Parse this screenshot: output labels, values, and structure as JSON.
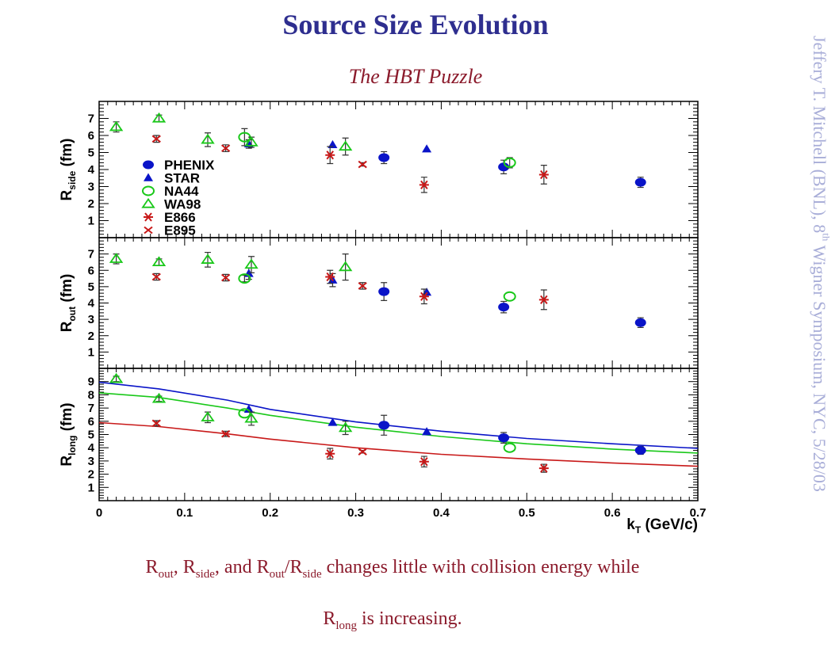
{
  "slide": {
    "title": "Source Size Evolution",
    "subtitle": "The HBT Puzzle",
    "side_credit_pre": "Jeffery T. Mitchell (BNL), 8",
    "side_credit_sup": "th",
    "side_credit_post": " Wigner Symposium, NYC, 5/28/03",
    "caption": {
      "line1": {
        "r1": "R",
        "r1_sub": "out",
        "t1": ", ",
        "r2": "R",
        "r2_sub": "side",
        "t2": ", and ",
        "r3": "R",
        "r3_sub": "out",
        "t3": "/",
        "r4": "R",
        "r4_sub": "side",
        "t4": " changes little with collision energy while"
      },
      "line2": {
        "r": "R",
        "r_sub": "long",
        "t": " is increasing."
      }
    }
  },
  "colors": {
    "title": "#2e2e8f",
    "caption": "#8b1a2b",
    "phenix": "#0a14c8",
    "star": "#0a14c8",
    "na44": "#19c819",
    "wa98": "#19c819",
    "e866": "#c81919",
    "e895": "#c81919",
    "credit": "#a9aed8"
  },
  "chart_data": {
    "type": "scatter",
    "xlabel_main": "k",
    "xlabel_sub": "T",
    "xlabel_unit": " (GeV/c)",
    "xlim": [
      0,
      0.7
    ],
    "x_ticks": [
      "0",
      "0.1",
      "0.2",
      "0.3",
      "0.4",
      "0.5",
      "0.6",
      "0.7"
    ],
    "legend": [
      {
        "name": "PHENIX",
        "marker": "circle-filled",
        "color": "#0a14c8"
      },
      {
        "name": "STAR",
        "marker": "triangle-filled",
        "color": "#0a14c8"
      },
      {
        "name": "NA44",
        "marker": "circle-open",
        "color": "#19c819"
      },
      {
        "name": "WA98",
        "marker": "triangle-open",
        "color": "#19c819"
      },
      {
        "name": "E866",
        "marker": "star",
        "color": "#c81919"
      },
      {
        "name": "E895",
        "marker": "cross",
        "color": "#c81919"
      }
    ],
    "legend_placement": "left, inside top panel",
    "panels": [
      {
        "ylabel_main": "R",
        "ylabel_sub": "side",
        "ylabel_unit": " (fm)",
        "ylim": [
          0,
          8
        ],
        "y_ticks": [
          "1",
          "2",
          "3",
          "4",
          "5",
          "6",
          "7"
        ],
        "series": {
          "PHENIX": [
            {
              "x": 0.333,
              "y": 4.7,
              "e": 0.35
            },
            {
              "x": 0.473,
              "y": 4.15,
              "e": 0.4
            },
            {
              "x": 0.633,
              "y": 3.25,
              "e": 0.3
            }
          ],
          "STAR": [
            {
              "x": 0.175,
              "y": 5.5,
              "e": 0.25
            },
            {
              "x": 0.273,
              "y": 5.45,
              "e": 0
            },
            {
              "x": 0.383,
              "y": 5.2,
              "e": 0
            }
          ],
          "NA44": [
            {
              "x": 0.17,
              "y": 5.9,
              "e": 0.5
            },
            {
              "x": 0.48,
              "y": 4.4,
              "e": 0.3
            }
          ],
          "WA98": [
            {
              "x": 0.02,
              "y": 6.5,
              "e": 0.3
            },
            {
              "x": 0.07,
              "y": 7.0,
              "e": 0.2
            },
            {
              "x": 0.127,
              "y": 5.75,
              "e": 0.4
            },
            {
              "x": 0.178,
              "y": 5.6,
              "e": 0.3
            },
            {
              "x": 0.288,
              "y": 5.35,
              "e": 0.5
            }
          ],
          "E866": [
            {
              "x": 0.27,
              "y": 4.85,
              "e": 0.5
            },
            {
              "x": 0.38,
              "y": 3.1,
              "e": 0.45
            },
            {
              "x": 0.52,
              "y": 3.7,
              "e": 0.55
            }
          ],
          "E895": [
            {
              "x": 0.067,
              "y": 5.8,
              "e": 0.2
            },
            {
              "x": 0.148,
              "y": 5.25,
              "e": 0.2
            },
            {
              "x": 0.308,
              "y": 4.3,
              "e": 0.1
            }
          ]
        },
        "curves": []
      },
      {
        "ylabel_main": "R",
        "ylabel_sub": "out",
        "ylabel_unit": " (fm)",
        "ylim": [
          0,
          8
        ],
        "y_ticks": [
          "1",
          "2",
          "3",
          "4",
          "5",
          "6",
          "7"
        ],
        "series": {
          "PHENIX": [
            {
              "x": 0.333,
              "y": 4.7,
              "e": 0.55
            },
            {
              "x": 0.473,
              "y": 3.75,
              "e": 0.35
            },
            {
              "x": 0.633,
              "y": 2.8,
              "e": 0.3
            }
          ],
          "STAR": [
            {
              "x": 0.175,
              "y": 5.8,
              "e": 0.35
            },
            {
              "x": 0.273,
              "y": 5.4,
              "e": 0.4
            },
            {
              "x": 0.383,
              "y": 4.65,
              "e": 0
            }
          ],
          "NA44": [
            {
              "x": 0.17,
              "y": 5.5,
              "e": 0.2
            },
            {
              "x": 0.48,
              "y": 4.4,
              "e": 0
            }
          ],
          "WA98": [
            {
              "x": 0.02,
              "y": 6.7,
              "e": 0.3
            },
            {
              "x": 0.07,
              "y": 6.5,
              "e": 0.2
            },
            {
              "x": 0.127,
              "y": 6.65,
              "e": 0.45
            },
            {
              "x": 0.178,
              "y": 6.35,
              "e": 0.5
            },
            {
              "x": 0.288,
              "y": 6.2,
              "e": 0.8
            }
          ],
          "E866": [
            {
              "x": 0.27,
              "y": 5.6,
              "e": 0.4
            },
            {
              "x": 0.38,
              "y": 4.4,
              "e": 0.45
            },
            {
              "x": 0.52,
              "y": 4.2,
              "e": 0.6
            }
          ],
          "E895": [
            {
              "x": 0.067,
              "y": 5.6,
              "e": 0.2
            },
            {
              "x": 0.148,
              "y": 5.55,
              "e": 0.2
            },
            {
              "x": 0.308,
              "y": 5.05,
              "e": 0.2
            }
          ]
        },
        "curves": []
      },
      {
        "ylabel_main": "R",
        "ylabel_sub": "long",
        "ylabel_unit": " (fm)",
        "ylim": [
          0,
          10
        ],
        "y_ticks": [
          "1",
          "2",
          "3",
          "4",
          "5",
          "6",
          "7",
          "8",
          "9"
        ],
        "series": {
          "PHENIX": [
            {
              "x": 0.333,
              "y": 5.7,
              "e": 0.75
            },
            {
              "x": 0.473,
              "y": 4.75,
              "e": 0.4
            },
            {
              "x": 0.633,
              "y": 3.8,
              "e": 0.3
            }
          ],
          "STAR": [
            {
              "x": 0.175,
              "y": 6.9,
              "e": 0
            },
            {
              "x": 0.273,
              "y": 5.9,
              "e": 0
            },
            {
              "x": 0.383,
              "y": 5.2,
              "e": 0
            }
          ],
          "NA44": [
            {
              "x": 0.17,
              "y": 6.6,
              "e": 0
            },
            {
              "x": 0.48,
              "y": 4.0,
              "e": 0
            }
          ],
          "WA98": [
            {
              "x": 0.02,
              "y": 9.2,
              "e": 0.2
            },
            {
              "x": 0.07,
              "y": 7.7,
              "e": 0.2
            },
            {
              "x": 0.127,
              "y": 6.3,
              "e": 0.4
            },
            {
              "x": 0.178,
              "y": 6.2,
              "e": 0.5
            },
            {
              "x": 0.288,
              "y": 5.5,
              "e": 0.5
            }
          ],
          "E866": [
            {
              "x": 0.27,
              "y": 3.55,
              "e": 0.4
            },
            {
              "x": 0.38,
              "y": 2.95,
              "e": 0.4
            },
            {
              "x": 0.52,
              "y": 2.45,
              "e": 0.3
            }
          ],
          "E895": [
            {
              "x": 0.067,
              "y": 5.85,
              "e": 0.2
            },
            {
              "x": 0.148,
              "y": 5.05,
              "e": 0.2
            },
            {
              "x": 0.308,
              "y": 3.7,
              "e": 0.1
            }
          ]
        },
        "curves": [
          {
            "color": "#0a14c8",
            "points": [
              [
                0.0,
                8.95
              ],
              [
                0.07,
                8.45
              ],
              [
                0.15,
                7.6
              ],
              [
                0.2,
                6.9
              ],
              [
                0.3,
                5.95
              ],
              [
                0.4,
                5.25
              ],
              [
                0.5,
                4.7
              ],
              [
                0.6,
                4.3
              ],
              [
                0.7,
                3.95
              ]
            ]
          },
          {
            "color": "#19c819",
            "points": [
              [
                0.0,
                8.15
              ],
              [
                0.07,
                7.8
              ],
              [
                0.15,
                7.0
              ],
              [
                0.2,
                6.45
              ],
              [
                0.3,
                5.55
              ],
              [
                0.4,
                4.85
              ],
              [
                0.5,
                4.3
              ],
              [
                0.6,
                3.9
              ],
              [
                0.7,
                3.6
              ]
            ]
          },
          {
            "color": "#c81919",
            "points": [
              [
                0.0,
                5.9
              ],
              [
                0.07,
                5.6
              ],
              [
                0.15,
                5.05
              ],
              [
                0.2,
                4.65
              ],
              [
                0.3,
                4.0
              ],
              [
                0.4,
                3.5
              ],
              [
                0.5,
                3.15
              ],
              [
                0.6,
                2.85
              ],
              [
                0.7,
                2.6
              ]
            ]
          }
        ]
      }
    ]
  }
}
